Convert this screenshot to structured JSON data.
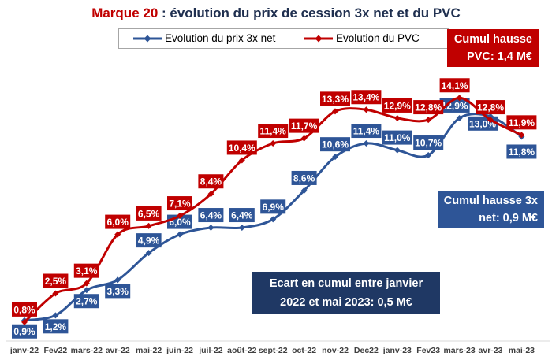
{
  "title": {
    "brand": "Marque 20",
    "rest": " : évolution du prix de cession 3x net et du PVC"
  },
  "legend": {
    "items": [
      {
        "label": "Evolution du prix 3x net",
        "color": "#2e5597"
      },
      {
        "label": "Evolution du PVC",
        "color": "#c00000"
      }
    ]
  },
  "callouts": {
    "pvc": {
      "line1": "Cumul hausse",
      "line2": "PVC: 1,4 M€"
    },
    "net": {
      "line1": "Cumul hausse 3x",
      "line2": "net: 0,9 M€"
    },
    "ecart": {
      "line1": "Ecart en cumul entre janvier",
      "line2": "2022 et mai 2023: 0,5 M€"
    }
  },
  "colors": {
    "pvc": "#c00000",
    "net": "#2e5597",
    "navy": "#1f3864"
  },
  "chart_data": {
    "type": "line",
    "title": "Marque 20 : évolution du prix de cession 3x net et du PVC",
    "categories": [
      "janv-22",
      "Fev22",
      "mars-22",
      "avr-22",
      "mai-22",
      "juin-22",
      "juil-22",
      "août-22",
      "sept-22",
      "oct-22",
      "nov-22",
      "Dec22",
      "janv-23",
      "Fev23",
      "mars-23",
      "avr-23",
      "mai-23"
    ],
    "series": [
      {
        "name": "Evolution du prix 3x net",
        "color": "#2e5597",
        "values": [
          0.9,
          1.2,
          2.7,
          3.3,
          4.9,
          6.0,
          6.4,
          6.4,
          6.9,
          8.6,
          10.6,
          11.4,
          11.0,
          10.7,
          12.9,
          13.0,
          11.8
        ],
        "labels": [
          "0,9%",
          "1,2%",
          "2,7%",
          "3,3%",
          "4,9%",
          "6,0%",
          "6,4%",
          "6,4%",
          "6,9%",
          "8,6%",
          "10,6%",
          "11,4%",
          "11,0%",
          "10,7%",
          "12,9%",
          "13,0%",
          "11,8%"
        ]
      },
      {
        "name": "Evolution du PVC",
        "color": "#c00000",
        "values": [
          0.8,
          2.5,
          3.1,
          6.0,
          6.5,
          7.1,
          8.4,
          10.4,
          11.4,
          11.7,
          13.3,
          13.4,
          12.9,
          12.8,
          14.1,
          12.8,
          11.9
        ],
        "labels": [
          "0,8%",
          "2,5%",
          "3,1%",
          "6,0%",
          "6,5%",
          "7,1%",
          "8,4%",
          "10,4%",
          "11,4%",
          "11,7%",
          "13,3%",
          "13,4%",
          "12,9%",
          "12,8%",
          "14,1%",
          "12,8%",
          "11,9%"
        ]
      }
    ],
    "grid": false,
    "legend": "top"
  }
}
